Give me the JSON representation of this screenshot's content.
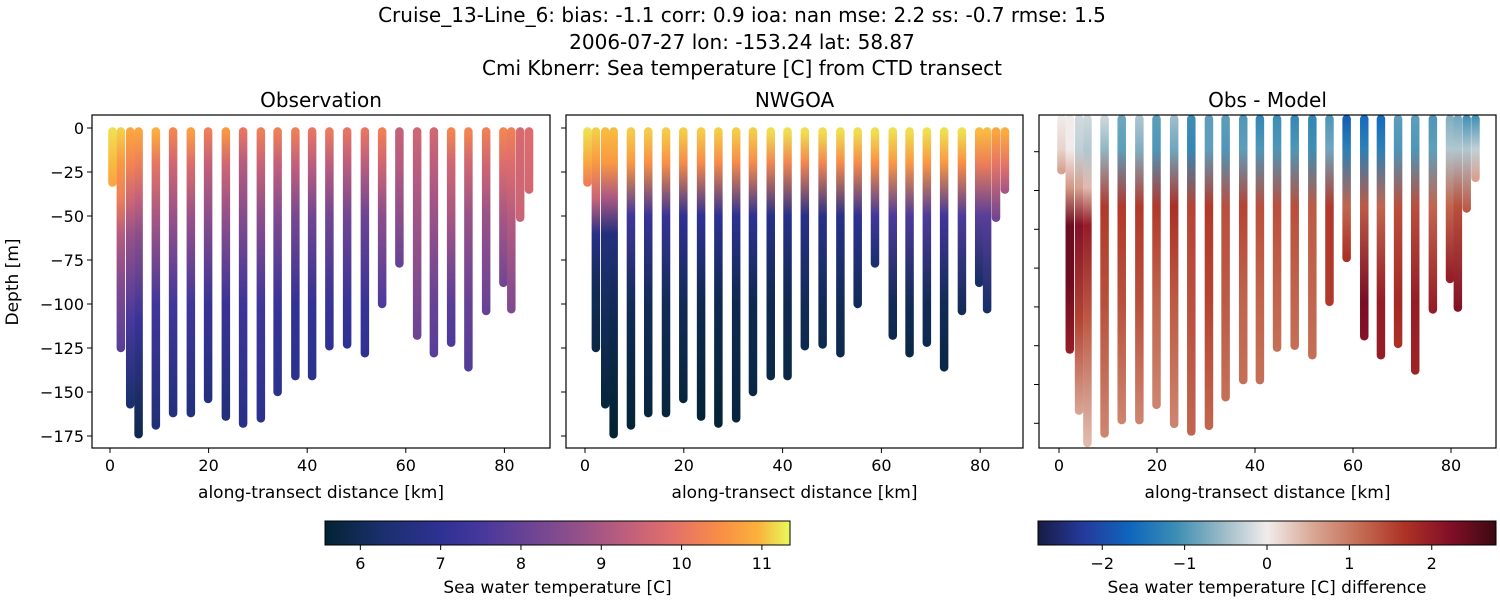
{
  "title_lines": [
    "Cruise_13-Line_6: bias: -1.1  corr: 0.9  ioa: nan  mse: 2.2  ss: -0.7  rmse: 1.5",
    "2006-07-27 lon: -153.24 lat: 58.87",
    "Cmi Kbnerr: Sea temperature [C] from CTD transect"
  ],
  "chart_data": [
    {
      "type": "scatter",
      "title": "Observation",
      "xlabel": "along-transect distance [km]",
      "ylabel": "Depth [m]",
      "field": "obs",
      "xlim": [
        -3.7,
        89
      ],
      "ylim": [
        -182,
        7
      ],
      "xticks": [
        0,
        20,
        40,
        60,
        80
      ],
      "yticks": [
        0,
        -25,
        -50,
        -75,
        -100,
        -125,
        -150,
        -175
      ],
      "colormap": "thermal",
      "clim": [
        5.56,
        11.35
      ]
    },
    {
      "type": "scatter",
      "title": "NWGOA",
      "xlabel": "along-transect distance [km]",
      "ylabel": "",
      "field": "model",
      "xlim": [
        -3.7,
        89
      ],
      "ylim": [
        -182,
        7
      ],
      "xticks": [
        0,
        20,
        40,
        60,
        80
      ],
      "yticks": [
        0,
        -25,
        -50,
        -75,
        -100,
        -125,
        -150,
        -175
      ],
      "colormap": "thermal",
      "clim": [
        5.56,
        11.35
      ]
    },
    {
      "type": "scatter",
      "title": "Obs - Model",
      "xlabel": "along-transect distance [km]",
      "ylabel": "",
      "field": "diff",
      "xlim": [
        -4,
        89
      ],
      "xticks": [
        0,
        20,
        40,
        60,
        80
      ],
      "colormap": "balance",
      "clim": [
        -2.78,
        2.78
      ]
    }
  ],
  "colorbars": [
    {
      "label": "Sea water temperature [C]",
      "ticks": [
        6,
        7,
        8,
        9,
        10,
        11
      ],
      "range": [
        5.56,
        11.35
      ],
      "colormap": "thermal"
    },
    {
      "label": "Sea water temperature [C] difference",
      "ticks": [
        -2,
        -1,
        0,
        1,
        2
      ],
      "range": [
        -2.78,
        2.78
      ],
      "colormap": "balance"
    }
  ],
  "colormaps": {
    "thermal": [
      [
        0,
        "#032333"
      ],
      [
        0.12,
        "#1a2f6b"
      ],
      [
        0.25,
        "#2e3193"
      ],
      [
        0.33,
        "#45379c"
      ],
      [
        0.45,
        "#704593"
      ],
      [
        0.55,
        "#955189"
      ],
      [
        0.65,
        "#bf5f7c"
      ],
      [
        0.75,
        "#e3706a"
      ],
      [
        0.85,
        "#f98e45"
      ],
      [
        0.93,
        "#fbb03c"
      ],
      [
        1,
        "#e8fa5b"
      ]
    ],
    "balance": [
      [
        0,
        "#181c43"
      ],
      [
        0.1,
        "#253a9c"
      ],
      [
        0.2,
        "#0e66bd"
      ],
      [
        0.3,
        "#3b8db3"
      ],
      [
        0.4,
        "#98b9c6"
      ],
      [
        0.5,
        "#f1eceb"
      ],
      [
        0.6,
        "#d9a796"
      ],
      [
        0.7,
        "#c56e55"
      ],
      [
        0.8,
        "#ae3226"
      ],
      [
        0.9,
        "#820f27"
      ],
      [
        1,
        "#3c0911"
      ]
    ]
  },
  "casts": [
    {
      "km": 0.5,
      "depths": [
        2,
        20,
        31
      ],
      "obs": [
        11.2,
        11.0,
        10.8
      ],
      "model": [
        11.2,
        10.8,
        10.2
      ]
    },
    {
      "km": 2.2,
      "depths": [
        2,
        20,
        40,
        60,
        90,
        125
      ],
      "obs": [
        11.1,
        10.6,
        10.2,
        9.2,
        8.4,
        7.8
      ],
      "model": [
        11.1,
        10.6,
        9.5,
        6.8,
        6.0,
        5.8
      ]
    },
    {
      "km": 4.1,
      "depths": [
        2,
        20,
        40,
        60,
        110,
        157
      ],
      "obs": [
        10.8,
        10.3,
        9.6,
        8.8,
        7.5,
        6.3
      ],
      "model": [
        11.0,
        10.6,
        9.0,
        6.6,
        6.0,
        5.7
      ]
    },
    {
      "km": 5.8,
      "depths": [
        2,
        20,
        40,
        60,
        110,
        174
      ],
      "obs": [
        10.8,
        10.2,
        9.4,
        8.6,
        7.2,
        5.9
      ],
      "model": [
        11.0,
        10.6,
        9.0,
        6.6,
        5.9,
        5.5
      ]
    },
    {
      "km": 9.3,
      "depths": [
        2,
        20,
        50,
        100,
        169
      ],
      "obs": [
        10.9,
        10.0,
        9.0,
        7.4,
        6.5
      ],
      "model": [
        11.1,
        10.6,
        7.4,
        6.0,
        5.6
      ]
    },
    {
      "km": 12.8,
      "depths": [
        2,
        20,
        50,
        100,
        162
      ],
      "obs": [
        10.3,
        9.6,
        8.8,
        7.4,
        6.6
      ],
      "model": [
        11.1,
        10.5,
        7.2,
        6.0,
        5.7
      ]
    },
    {
      "km": 16.4,
      "depths": [
        2,
        20,
        50,
        100,
        162
      ],
      "obs": [
        10.7,
        9.8,
        8.8,
        7.4,
        6.6
      ],
      "model": [
        11.1,
        10.5,
        7.2,
        6.0,
        5.7
      ]
    },
    {
      "km": 19.9,
      "depths": [
        2,
        20,
        50,
        100,
        154
      ],
      "obs": [
        10.2,
        9.4,
        8.6,
        7.2,
        6.6
      ],
      "model": [
        11.1,
        10.4,
        7.0,
        6.0,
        5.7
      ]
    },
    {
      "km": 23.5,
      "depths": [
        2,
        20,
        50,
        100,
        164
      ],
      "obs": [
        10.6,
        9.6,
        8.7,
        7.2,
        6.5
      ],
      "model": [
        11.1,
        10.4,
        7.0,
        5.9,
        5.6
      ]
    },
    {
      "km": 27.0,
      "depths": [
        2,
        20,
        50,
        100,
        168
      ],
      "obs": [
        10.0,
        9.2,
        8.5,
        7.3,
        6.8
      ],
      "model": [
        11.1,
        10.4,
        7.0,
        5.9,
        5.6
      ]
    },
    {
      "km": 30.6,
      "depths": [
        2,
        20,
        50,
        100,
        165
      ],
      "obs": [
        10.2,
        9.5,
        8.6,
        7.4,
        6.9
      ],
      "model": [
        11.1,
        10.4,
        7.0,
        5.9,
        5.7
      ]
    },
    {
      "km": 34.0,
      "depths": [
        2,
        20,
        50,
        100,
        150
      ],
      "obs": [
        10.2,
        9.4,
        8.4,
        7.2,
        6.9
      ],
      "model": [
        11.1,
        10.4,
        7.0,
        5.9,
        5.8
      ]
    },
    {
      "km": 37.6,
      "depths": [
        2,
        20,
        50,
        100,
        141
      ],
      "obs": [
        10.2,
        9.4,
        8.3,
        7.1,
        6.9
      ],
      "model": [
        11.2,
        10.3,
        6.8,
        5.9,
        5.8
      ]
    },
    {
      "km": 41.0,
      "depths": [
        2,
        20,
        50,
        100,
        141
      ],
      "obs": [
        10.0,
        9.3,
        8.2,
        7.1,
        6.9
      ],
      "model": [
        11.2,
        10.3,
        6.8,
        5.9,
        5.8
      ]
    },
    {
      "km": 44.5,
      "depths": [
        2,
        20,
        50,
        100,
        124
      ],
      "obs": [
        10.1,
        9.3,
        8.2,
        7.2,
        7.0
      ],
      "model": [
        11.2,
        10.3,
        6.8,
        6.0,
        5.9
      ]
    },
    {
      "km": 48.1,
      "depths": [
        2,
        20,
        50,
        100,
        123
      ],
      "obs": [
        10.0,
        9.3,
        8.2,
        7.2,
        7.0
      ],
      "model": [
        11.2,
        10.3,
        6.8,
        6.0,
        5.9
      ]
    },
    {
      "km": 51.7,
      "depths": [
        2,
        20,
        50,
        100,
        128
      ],
      "obs": [
        10.0,
        9.3,
        8.1,
        7.2,
        7.0
      ],
      "model": [
        11.2,
        10.4,
        6.8,
        6.0,
        5.9
      ]
    },
    {
      "km": 55.2,
      "depths": [
        2,
        20,
        50,
        100
      ],
      "obs": [
        10.2,
        9.6,
        8.6,
        7.6
      ],
      "model": [
        11.2,
        10.4,
        7.0,
        6.0
      ]
    },
    {
      "km": 58.7,
      "depths": [
        2,
        20,
        50,
        77
      ],
      "obs": [
        9.4,
        9.2,
        8.6,
        8.0
      ],
      "model": [
        11.2,
        10.5,
        7.4,
        6.3
      ]
    },
    {
      "km": 62.3,
      "depths": [
        2,
        20,
        50,
        100,
        118
      ],
      "obs": [
        9.6,
        9.3,
        8.9,
        8.3,
        8.1
      ],
      "model": [
        11.2,
        10.6,
        7.6,
        6.0,
        5.9
      ]
    },
    {
      "km": 65.7,
      "depths": [
        2,
        20,
        50,
        100,
        128
      ],
      "obs": [
        9.6,
        9.3,
        8.8,
        8.0,
        7.8
      ],
      "model": [
        11.2,
        10.6,
        7.6,
        6.0,
        5.8
      ]
    },
    {
      "km": 69.2,
      "depths": [
        2,
        20,
        50,
        100,
        122
      ],
      "obs": [
        10.3,
        9.6,
        9.0,
        7.8,
        7.6
      ],
      "model": [
        11.2,
        10.6,
        7.6,
        6.0,
        5.9
      ]
    },
    {
      "km": 72.7,
      "depths": [
        2,
        20,
        50,
        100,
        136
      ],
      "obs": [
        10.3,
        9.6,
        8.8,
        8.0,
        7.7
      ],
      "model": [
        11.2,
        10.6,
        7.4,
        6.0,
        5.8
      ]
    },
    {
      "km": 76.3,
      "depths": [
        2,
        20,
        50,
        104
      ],
      "obs": [
        10.2,
        9.6,
        8.8,
        8.0
      ],
      "model": [
        11.2,
        10.5,
        7.6,
        6.0
      ]
    },
    {
      "km": 79.8,
      "depths": [
        2,
        20,
        50,
        88
      ],
      "obs": [
        10.3,
        9.8,
        9.0,
        8.2
      ],
      "model": [
        11.0,
        10.2,
        7.8,
        6.2
      ]
    },
    {
      "km": 81.4,
      "depths": [
        2,
        20,
        50,
        103
      ],
      "obs": [
        10.2,
        9.8,
        9.2,
        8.4
      ],
      "model": [
        11.0,
        10.2,
        7.8,
        6.2
      ]
    },
    {
      "km": 83.2,
      "depths": [
        2,
        20,
        51
      ],
      "obs": [
        9.7,
        9.6,
        9.5
      ],
      "model": [
        10.8,
        10.0,
        8.2
      ]
    },
    {
      "km": 85.0,
      "depths": [
        2,
        20,
        35
      ],
      "obs": [
        9.8,
        9.7,
        9.6
      ],
      "model": [
        10.9,
        10.0,
        9.0
      ]
    }
  ]
}
